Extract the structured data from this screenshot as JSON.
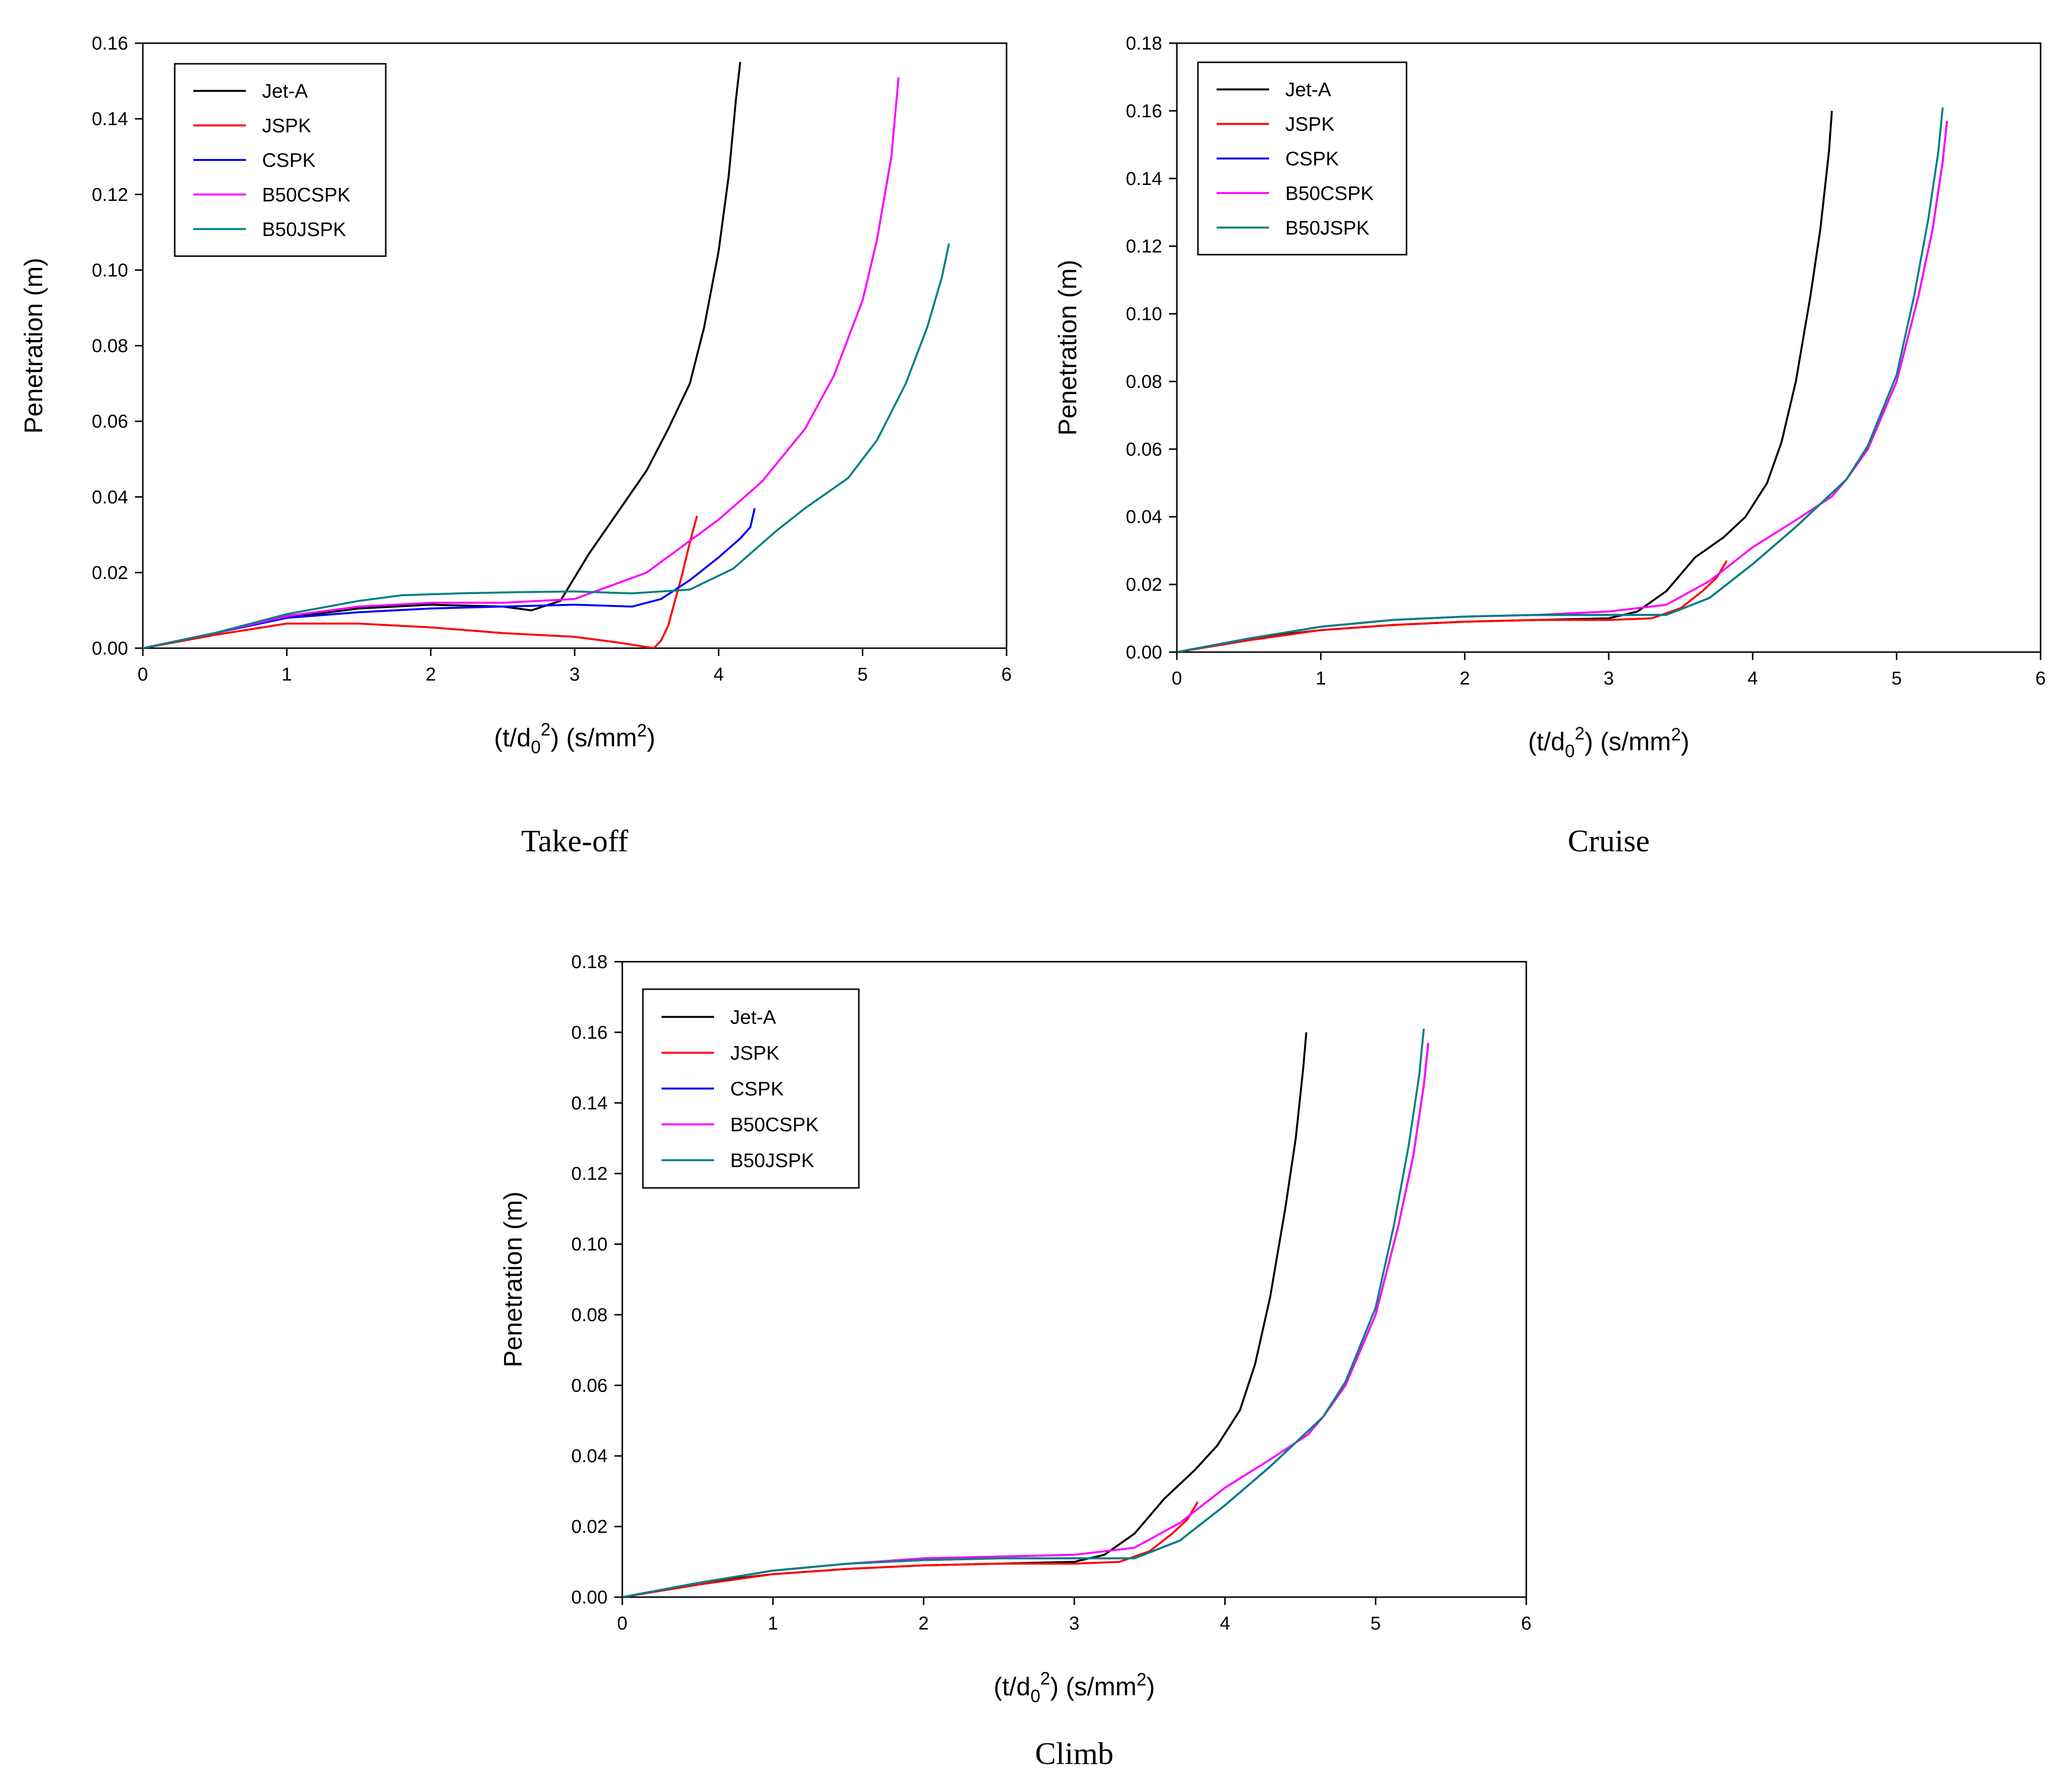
{
  "chart_data": [
    {
      "type": "line",
      "caption": "Take-off",
      "xlabel": "(t/d",
      "xlabel_sub": "0",
      "xlabel_sup": "2",
      "xlabel_tail": ") (s/mm",
      "xlabel_tail_sup": "2",
      "xlabel_end": ")",
      "ylabel": "Penetration (m)",
      "xlim": [
        0,
        6
      ],
      "ylim": [
        0,
        0.16
      ],
      "xticks": [
        "0",
        "1",
        "2",
        "3",
        "4",
        "5",
        "6"
      ],
      "yticks": [
        "0.00",
        "0.02",
        "0.04",
        "0.06",
        "0.08",
        "0.10",
        "0.12",
        "0.14",
        "0.16"
      ],
      "legend": [
        "Jet-A",
        "JSPK",
        "CSPK",
        "B50CSPK",
        "B50JSPK"
      ],
      "series": [
        {
          "name": "Jet-A",
          "color": "#000000",
          "x": [
            0,
            0.5,
            1,
            1.5,
            2,
            2.5,
            2.7,
            2.9,
            3.1,
            3.3,
            3.5,
            3.65,
            3.8,
            3.9,
            4.0,
            4.07,
            4.12,
            4.15
          ],
          "y": [
            0,
            0.004,
            0.008,
            0.0105,
            0.0115,
            0.011,
            0.01,
            0.0125,
            0.025,
            0.036,
            0.047,
            0.058,
            0.07,
            0.085,
            0.105,
            0.125,
            0.145,
            0.155
          ]
        },
        {
          "name": "JSPK",
          "color": "#ff0000",
          "x": [
            0,
            0.5,
            1,
            1.5,
            2,
            2.5,
            3,
            3.3,
            3.5,
            3.55,
            3.6,
            3.65,
            3.7,
            3.75,
            3.8,
            3.85
          ],
          "y": [
            0,
            0.0035,
            0.0065,
            0.0065,
            0.0055,
            0.004,
            0.003,
            0.0015,
            0.0003,
            0.0,
            0.002,
            0.006,
            0.013,
            0.02,
            0.028,
            0.035
          ]
        },
        {
          "name": "CSPK",
          "color": "#0000ff",
          "x": [
            0,
            0.5,
            1,
            1.5,
            2,
            2.5,
            3,
            3.4,
            3.6,
            3.8,
            4.0,
            4.15,
            4.22,
            4.25
          ],
          "y": [
            0,
            0.004,
            0.008,
            0.0095,
            0.0105,
            0.011,
            0.0115,
            0.011,
            0.013,
            0.018,
            0.024,
            0.029,
            0.032,
            0.037
          ]
        },
        {
          "name": "B50CSPK",
          "color": "#ff00ff",
          "x": [
            0,
            0.5,
            1,
            1.5,
            2,
            2.5,
            3,
            3.5,
            4,
            4.3,
            4.6,
            4.8,
            5.0,
            5.1,
            5.2,
            5.25
          ],
          "y": [
            0,
            0.004,
            0.0085,
            0.011,
            0.012,
            0.012,
            0.013,
            0.02,
            0.034,
            0.044,
            0.058,
            0.072,
            0.092,
            0.108,
            0.13,
            0.151
          ]
        },
        {
          "name": "B50JSPK",
          "color": "#008080",
          "x": [
            0,
            0.5,
            1,
            1.5,
            1.8,
            2.2,
            2.6,
            3,
            3.4,
            3.8,
            4.1,
            4.4,
            4.6,
            4.9,
            5.1,
            5.3,
            5.45,
            5.55,
            5.6
          ],
          "y": [
            0,
            0.004,
            0.009,
            0.0125,
            0.014,
            0.0145,
            0.0148,
            0.015,
            0.0145,
            0.0155,
            0.021,
            0.031,
            0.037,
            0.045,
            0.055,
            0.07,
            0.085,
            0.098,
            0.107
          ]
        }
      ]
    },
    {
      "type": "line",
      "caption": "Cruise",
      "xlabel": "(t/d",
      "xlabel_sub": "0",
      "xlabel_sup": "2",
      "xlabel_tail": ") (s/mm",
      "xlabel_tail_sup": "2",
      "xlabel_end": ")",
      "ylabel": "Penetration (m)",
      "xlim": [
        0,
        6
      ],
      "ylim": [
        0,
        0.18
      ],
      "xticks": [
        "0",
        "1",
        "2",
        "3",
        "4",
        "5",
        "6"
      ],
      "yticks": [
        "0.00",
        "0.02",
        "0.04",
        "0.06",
        "0.08",
        "0.10",
        "0.12",
        "0.14",
        "0.16",
        "0.18"
      ],
      "legend": [
        "Jet-A",
        "JSPK",
        "CSPK",
        "B50CSPK",
        "B50JSPK"
      ],
      "series": [
        {
          "name": "Jet-A",
          "color": "#000000",
          "x": [
            0,
            0.5,
            1,
            1.5,
            2,
            2.5,
            3,
            3.2,
            3.4,
            3.6,
            3.8,
            3.95,
            4.1,
            4.2,
            4.3,
            4.4,
            4.47,
            4.53,
            4.55
          ],
          "y": [
            0,
            0.004,
            0.0065,
            0.008,
            0.009,
            0.0095,
            0.01,
            0.012,
            0.018,
            0.028,
            0.034,
            0.04,
            0.05,
            0.062,
            0.08,
            0.105,
            0.125,
            0.148,
            0.16
          ]
        },
        {
          "name": "JSPK",
          "color": "#ff0000",
          "x": [
            0,
            0.5,
            1,
            1.5,
            2,
            2.5,
            3,
            3.3,
            3.5,
            3.65,
            3.75,
            3.82
          ],
          "y": [
            0,
            0.0035,
            0.0065,
            0.008,
            0.009,
            0.0095,
            0.0095,
            0.01,
            0.013,
            0.018,
            0.022,
            0.027
          ]
        },
        {
          "name": "CSPK",
          "color": "#0000ff",
          "x": [
            0,
            0.5,
            1,
            1.5,
            2,
            2.5,
            3,
            3.4,
            3.7,
            4.0,
            4.3,
            4.55,
            4.65,
            4.8,
            5.0,
            5.15,
            5.25,
            5.32,
            5.35
          ],
          "y": [
            0,
            0.004,
            0.0075,
            0.0095,
            0.0105,
            0.011,
            0.011,
            0.011,
            0.016,
            0.026,
            0.037,
            0.047,
            0.051,
            0.06,
            0.08,
            0.105,
            0.125,
            0.145,
            0.157
          ]
        },
        {
          "name": "B50CSPK",
          "color": "#ff00ff",
          "x": [
            0,
            0.5,
            1,
            1.5,
            2,
            2.5,
            3,
            3.4,
            3.7,
            4.0,
            4.3,
            4.55,
            4.65,
            4.8,
            5.0,
            5.15,
            5.25,
            5.32,
            5.35
          ],
          "y": [
            0,
            0.004,
            0.0075,
            0.0095,
            0.0105,
            0.011,
            0.012,
            0.014,
            0.021,
            0.031,
            0.039,
            0.046,
            0.051,
            0.06,
            0.08,
            0.105,
            0.125,
            0.145,
            0.157
          ]
        },
        {
          "name": "B50JSPK",
          "color": "#008080",
          "x": [
            0,
            0.5,
            1,
            1.5,
            2,
            2.5,
            3,
            3.4,
            3.7,
            4.0,
            4.3,
            4.55,
            4.65,
            4.8,
            5.0,
            5.12,
            5.22,
            5.29,
            5.32
          ],
          "y": [
            0,
            0.004,
            0.0075,
            0.0095,
            0.0105,
            0.011,
            0.011,
            0.011,
            0.016,
            0.026,
            0.037,
            0.047,
            0.051,
            0.061,
            0.082,
            0.105,
            0.128,
            0.148,
            0.161
          ]
        }
      ]
    },
    {
      "type": "line",
      "caption": "Climb",
      "xlabel": "(t/d",
      "xlabel_sub": "0",
      "xlabel_sup": "2",
      "xlabel_tail": ") (s/mm",
      "xlabel_tail_sup": "2",
      "xlabel_end": ")",
      "ylabel": "Penetration (m)",
      "xlim": [
        0,
        6
      ],
      "ylim": [
        0,
        0.18
      ],
      "xticks": [
        "0",
        "1",
        "2",
        "3",
        "4",
        "5",
        "6"
      ],
      "yticks": [
        "0.00",
        "0.02",
        "0.04",
        "0.06",
        "0.08",
        "0.10",
        "0.12",
        "0.14",
        "0.16",
        "0.18"
      ],
      "legend": [
        "Jet-A",
        "JSPK",
        "CSPK",
        "B50CSPK",
        "B50JSPK"
      ],
      "series": [
        {
          "name": "Jet-A",
          "color": "#000000",
          "x": [
            0,
            0.5,
            1,
            1.5,
            2,
            2.5,
            3,
            3.2,
            3.4,
            3.6,
            3.8,
            3.95,
            4.1,
            4.2,
            4.3,
            4.4,
            4.47,
            4.52,
            4.54
          ],
          "y": [
            0,
            0.004,
            0.0065,
            0.008,
            0.009,
            0.0095,
            0.01,
            0.012,
            0.018,
            0.028,
            0.036,
            0.043,
            0.053,
            0.066,
            0.085,
            0.11,
            0.13,
            0.15,
            0.16
          ]
        },
        {
          "name": "JSPK",
          "color": "#ff0000",
          "x": [
            0,
            0.5,
            1,
            1.5,
            2,
            2.5,
            3,
            3.3,
            3.5,
            3.65,
            3.75,
            3.82
          ],
          "y": [
            0,
            0.0035,
            0.0065,
            0.008,
            0.009,
            0.0095,
            0.0095,
            0.01,
            0.013,
            0.018,
            0.022,
            0.027
          ]
        },
        {
          "name": "CSPK",
          "color": "#0000ff",
          "x": [
            0,
            0.5,
            1,
            1.5,
            2,
            2.5,
            3,
            3.4,
            3.7,
            4.0,
            4.3,
            4.55,
            4.65,
            4.8,
            5.0,
            5.15,
            5.25,
            5.32,
            5.35
          ],
          "y": [
            0,
            0.004,
            0.0075,
            0.0095,
            0.0105,
            0.011,
            0.011,
            0.011,
            0.016,
            0.026,
            0.037,
            0.047,
            0.051,
            0.06,
            0.08,
            0.105,
            0.125,
            0.145,
            0.157
          ]
        },
        {
          "name": "B50CSPK",
          "color": "#ff00ff",
          "x": [
            0,
            0.5,
            1,
            1.5,
            2,
            2.5,
            3,
            3.4,
            3.7,
            4.0,
            4.3,
            4.55,
            4.65,
            4.8,
            5.0,
            5.15,
            5.25,
            5.32,
            5.35
          ],
          "y": [
            0,
            0.004,
            0.0075,
            0.0095,
            0.011,
            0.0115,
            0.012,
            0.014,
            0.021,
            0.031,
            0.039,
            0.046,
            0.051,
            0.06,
            0.08,
            0.105,
            0.125,
            0.145,
            0.157
          ]
        },
        {
          "name": "B50JSPK",
          "color": "#008080",
          "x": [
            0,
            0.5,
            1,
            1.5,
            2,
            2.5,
            3,
            3.4,
            3.7,
            4.0,
            4.3,
            4.55,
            4.65,
            4.8,
            5.0,
            5.12,
            5.22,
            5.29,
            5.32
          ],
          "y": [
            0,
            0.004,
            0.0075,
            0.0095,
            0.0105,
            0.011,
            0.011,
            0.011,
            0.016,
            0.026,
            0.037,
            0.047,
            0.051,
            0.061,
            0.082,
            0.105,
            0.128,
            0.148,
            0.161
          ]
        }
      ]
    }
  ]
}
